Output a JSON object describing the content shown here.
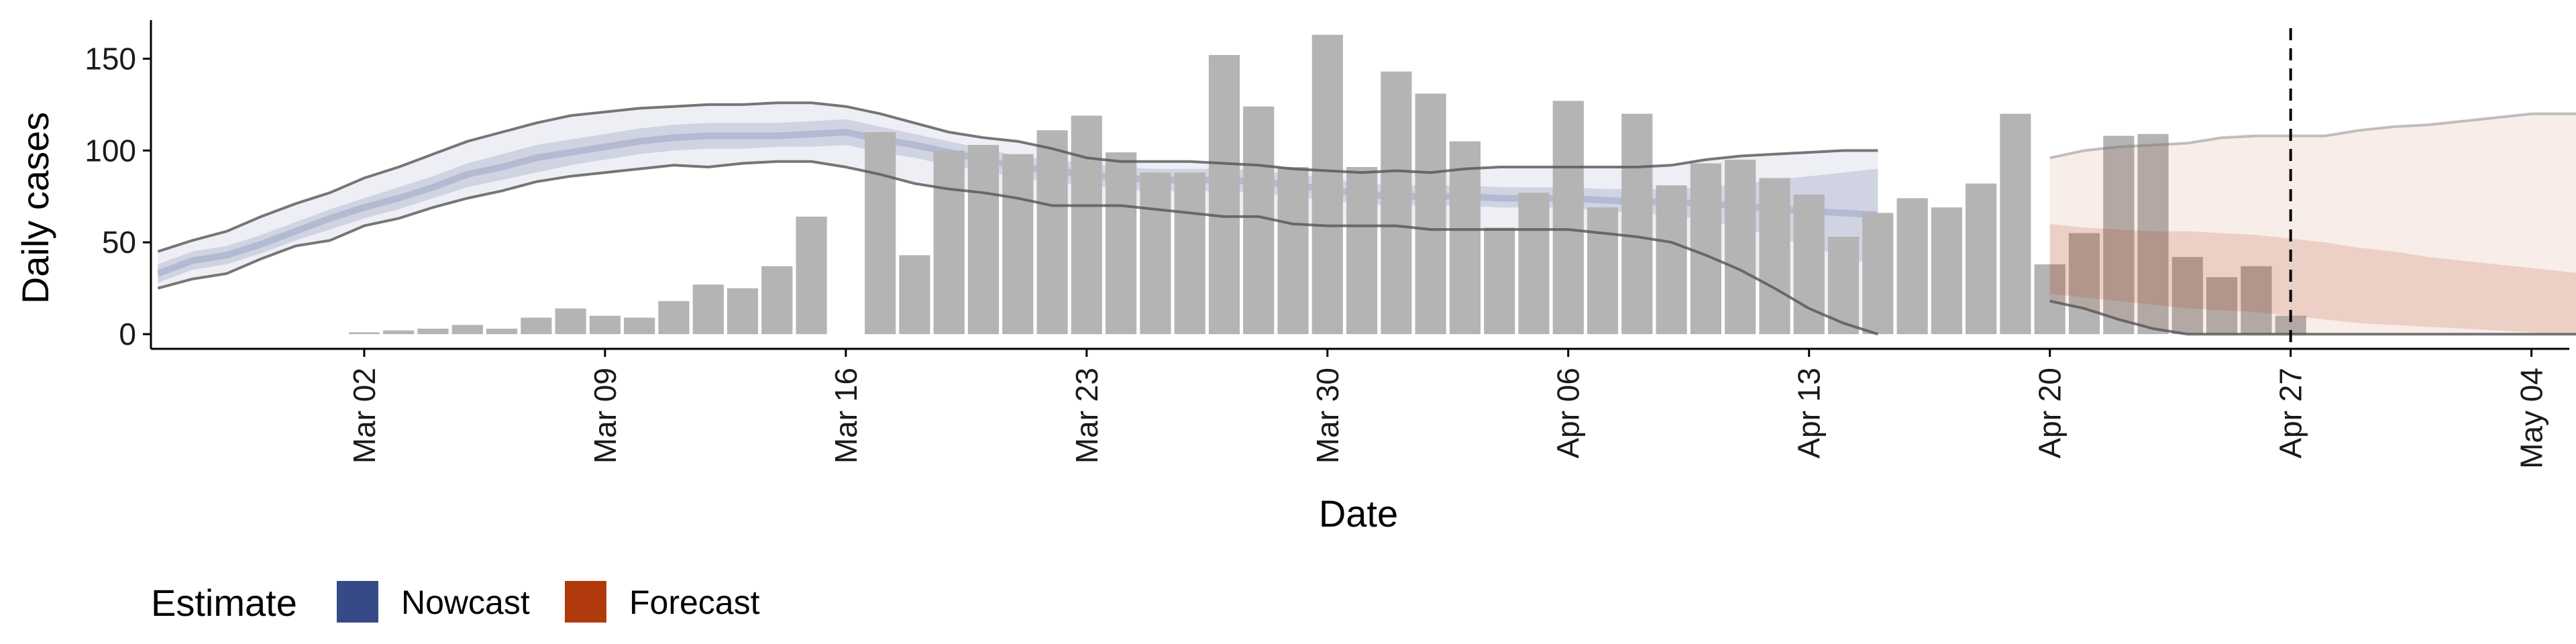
{
  "chart_data": {
    "type": "bar",
    "xlabel": "Date",
    "ylabel": "Daily cases",
    "x_ticks": [
      {
        "label": "Mar 02",
        "day": 1
      },
      {
        "label": "Mar 09",
        "day": 8
      },
      {
        "label": "Mar 16",
        "day": 15
      },
      {
        "label": "Mar 23",
        "day": 22
      },
      {
        "label": "Mar 30",
        "day": 29
      },
      {
        "label": "Apr 06",
        "day": 36
      },
      {
        "label": "Apr 13",
        "day": 43
      },
      {
        "label": "Apr 20",
        "day": 50
      },
      {
        "label": "Apr 27",
        "day": 57
      },
      {
        "label": "May 04",
        "day": 64
      }
    ],
    "y_ticks": [
      0,
      50,
      100,
      150
    ],
    "xlim_day": [
      -5.2,
      65.1
    ],
    "ylim": [
      -8,
      171
    ],
    "vline_day": 57,
    "grid": false,
    "legend": {
      "title": "Estimate",
      "position": "bottom-left",
      "items": [
        {
          "label": "Nowcast",
          "color": "#354a86"
        },
        {
          "label": "Forecast",
          "color": "#b03a0c"
        }
      ]
    },
    "bars": {
      "start_day": 1,
      "color": "#b4b4b4",
      "values": [
        1,
        2,
        3,
        5,
        3,
        9,
        14,
        10,
        9,
        18,
        27,
        25,
        37,
        64,
        0,
        110,
        43,
        100,
        103,
        98,
        111,
        119,
        99,
        88,
        88,
        152,
        124,
        91,
        163,
        91,
        143,
        131,
        105,
        58,
        77,
        127,
        69,
        120,
        81,
        93,
        95,
        85,
        76,
        53,
        66,
        74,
        69,
        82,
        120,
        38,
        55,
        108,
        109,
        42,
        31,
        37,
        10
      ]
    },
    "nowcast": {
      "start_day": -5,
      "color": "#354a86",
      "median": [
        33,
        40,
        43,
        49,
        56,
        63,
        69,
        74,
        80,
        87,
        91,
        96,
        99,
        102,
        105,
        107,
        108,
        108,
        108,
        109,
        110,
        106,
        103,
        99,
        95,
        91,
        89,
        87,
        85,
        84,
        84,
        84,
        83,
        81,
        79,
        76,
        75,
        75,
        75,
        74,
        74,
        74,
        73,
        72,
        72,
        71,
        70,
        68,
        67,
        66,
        65
      ],
      "inner_lower": [
        28,
        35,
        38,
        44,
        51,
        57,
        63,
        68,
        74,
        80,
        84,
        88,
        92,
        95,
        98,
        100,
        101,
        101,
        102,
        102,
        103,
        99,
        96,
        92,
        89,
        85,
        83,
        81,
        79,
        78,
        78,
        78,
        77,
        75,
        73,
        71,
        70,
        70,
        70,
        69,
        69,
        69,
        67,
        66,
        65,
        62,
        58,
        53,
        48,
        42,
        37
      ],
      "inner_upper": [
        38,
        45,
        48,
        54,
        61,
        68,
        74,
        80,
        86,
        93,
        98,
        103,
        106,
        109,
        112,
        114,
        115,
        115,
        115,
        116,
        117,
        113,
        109,
        105,
        101,
        97,
        95,
        93,
        91,
        90,
        90,
        90,
        89,
        87,
        85,
        82,
        81,
        81,
        81,
        80,
        80,
        80,
        79,
        79,
        79,
        80,
        82,
        84,
        86,
        88,
        90
      ],
      "outer_lower": [
        25,
        30,
        33,
        41,
        48,
        51,
        59,
        63,
        69,
        74,
        78,
        83,
        86,
        88,
        90,
        92,
        91,
        93,
        94,
        94,
        91,
        87,
        82,
        79,
        77,
        74,
        70,
        70,
        70,
        68,
        66,
        64,
        64,
        60,
        59,
        59,
        59,
        57,
        57,
        57,
        57,
        57,
        55,
        53,
        50,
        43,
        35,
        25,
        14,
        6,
        0
      ],
      "outer_upper": [
        45,
        51,
        56,
        64,
        71,
        77,
        85,
        91,
        98,
        105,
        110,
        115,
        119,
        121,
        123,
        124,
        125,
        125,
        126,
        126,
        124,
        120,
        115,
        110,
        107,
        105,
        101,
        96,
        94,
        94,
        94,
        93,
        92,
        90,
        89,
        88,
        89,
        88,
        90,
        91,
        91,
        91,
        91,
        91,
        92,
        95,
        97,
        98,
        99,
        100,
        100
      ]
    },
    "forecast": {
      "start_day": 50,
      "color": "#b03a0c",
      "median": [
        45,
        44,
        43,
        42,
        42,
        41,
        40,
        40,
        38,
        36,
        34,
        32,
        30,
        29,
        27,
        26,
        25,
        25,
        24,
        24,
        24
      ],
      "inner_lower": [
        22,
        20,
        18,
        16,
        14,
        13,
        12,
        10,
        8,
        6,
        5,
        4,
        3,
        2,
        1,
        0,
        0,
        0,
        0,
        0,
        0
      ],
      "inner_upper": [
        60,
        58,
        57,
        56,
        56,
        55,
        54,
        52,
        50,
        47,
        45,
        42,
        40,
        38,
        36,
        34,
        32,
        30,
        29,
        27,
        26
      ],
      "outer_lower": [
        18,
        14,
        8,
        3,
        0,
        0,
        0,
        0,
        0,
        0,
        0,
        0,
        0,
        0,
        0,
        0,
        0,
        0,
        0,
        0,
        0
      ],
      "outer_upper": [
        96,
        100,
        102,
        103,
        104,
        107,
        108,
        108,
        108,
        111,
        113,
        114,
        116,
        118,
        120,
        120,
        120,
        123,
        122,
        122,
        122
      ]
    }
  }
}
